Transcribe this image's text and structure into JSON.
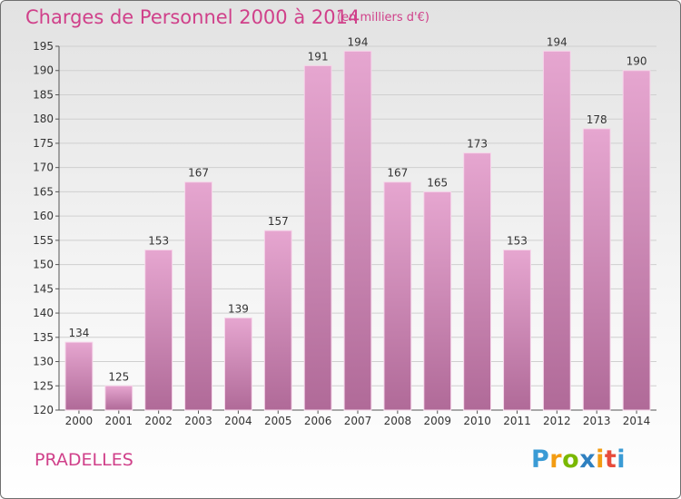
{
  "title": "Charges de Personnel 2000 à 2014",
  "subtitle": "(en milliers d'€)",
  "place": "PRADELLES",
  "logo": {
    "letters": [
      "P",
      "r",
      "o",
      "x",
      "i",
      "t",
      "i"
    ],
    "colors": [
      "#3a9bd5",
      "#f39c12",
      "#7ab800",
      "#2f80c0",
      "#f39c12",
      "#e74c3c",
      "#3a9bd5"
    ]
  },
  "colors": {
    "bar_top": "#e6a6d0",
    "bar_bottom": "#b06a98",
    "accent": "#d0408a"
  },
  "chart_data": {
    "type": "bar",
    "title": "Charges de Personnel 2000 à 2014",
    "subtitle": "(en milliers d'€)",
    "categories": [
      "2000",
      "2001",
      "2002",
      "2003",
      "2004",
      "2005",
      "2006",
      "2007",
      "2008",
      "2009",
      "2010",
      "2011",
      "2012",
      "2013",
      "2014"
    ],
    "values": [
      134,
      125,
      153,
      167,
      139,
      157,
      191,
      194,
      167,
      165,
      173,
      153,
      194,
      178,
      190
    ],
    "ylim": [
      120,
      195
    ],
    "yticks": [
      120,
      125,
      130,
      135,
      140,
      145,
      150,
      155,
      160,
      165,
      170,
      175,
      180,
      185,
      190,
      195
    ],
    "grid": true
  }
}
